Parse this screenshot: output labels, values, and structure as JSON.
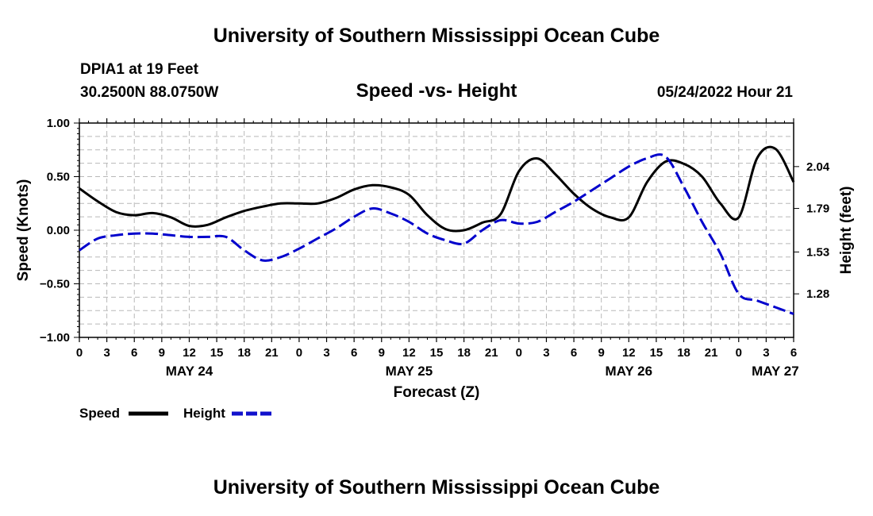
{
  "page": {
    "title": "University of Southern Mississippi Ocean Cube",
    "footer_title": "University of Southern Mississippi Ocean Cube",
    "station": "DPIA1 at 19 Feet",
    "coords": "30.2500N  88.0750W",
    "timestamp": "05/24/2022 Hour 21"
  },
  "chart_data": {
    "type": "line",
    "title": "Speed -vs- Height",
    "xlabel": "Forecast (Z)",
    "ylabel_left": "Speed (Knots)",
    "ylabel_right": "Height (feet)",
    "x_range_hours": [
      0,
      78
    ],
    "ylim_left": [
      -1.0,
      1.0
    ],
    "ylim_right": [
      1.02,
      2.3
    ],
    "grid": true,
    "x_tick_labels": [
      "0",
      "3",
      "6",
      "9",
      "12",
      "15",
      "18",
      "21",
      "0",
      "3",
      "6",
      "9",
      "12",
      "15",
      "18",
      "21",
      "0",
      "3",
      "6",
      "9",
      "12",
      "15",
      "18",
      "21",
      "0",
      "3",
      "6"
    ],
    "day_labels": [
      {
        "label": "MAY 24",
        "hour": 12
      },
      {
        "label": "MAY 25",
        "hour": 36
      },
      {
        "label": "MAY 26",
        "hour": 60
      },
      {
        "label": "MAY 27",
        "hour": 76
      }
    ],
    "left_ticks": [
      "1.00",
      "0.50",
      "0.00",
      "−0.50",
      "−1.00"
    ],
    "left_tick_values": [
      1.0,
      0.5,
      0.0,
      -0.5,
      -1.0
    ],
    "right_ticks": [
      "2.04",
      "1.79",
      "1.53",
      "1.28"
    ],
    "right_tick_values": [
      2.04,
      1.79,
      1.53,
      1.28
    ],
    "series": [
      {
        "name": "Speed",
        "axis": "left",
        "color": "#000000",
        "dash": false,
        "x": [
          0,
          2,
          4,
          6,
          8,
          10,
          12,
          14,
          16,
          18,
          20,
          22,
          24,
          26,
          28,
          30,
          32,
          34,
          36,
          38,
          40,
          42,
          44,
          46,
          48,
          50,
          52,
          54,
          56,
          58,
          60,
          62,
          64,
          66,
          68,
          70,
          72,
          74,
          76,
          78
        ],
        "y": [
          0.39,
          0.27,
          0.17,
          0.14,
          0.16,
          0.12,
          0.04,
          0.05,
          0.12,
          0.18,
          0.22,
          0.25,
          0.25,
          0.25,
          0.3,
          0.38,
          0.42,
          0.4,
          0.33,
          0.14,
          0.01,
          0.0,
          0.07,
          0.15,
          0.55,
          0.67,
          0.52,
          0.34,
          0.2,
          0.12,
          0.12,
          0.45,
          0.64,
          0.62,
          0.5,
          0.25,
          0.12,
          0.67,
          0.76,
          0.45
        ]
      },
      {
        "name": "Height",
        "axis": "right",
        "color": "#0000cc",
        "dash": true,
        "x": [
          0,
          2,
          4,
          6,
          8,
          10,
          12,
          14,
          16,
          18,
          20,
          22,
          24,
          26,
          28,
          30,
          32,
          34,
          36,
          38,
          40,
          42,
          44,
          46,
          48,
          50,
          52,
          54,
          56,
          58,
          60,
          62,
          64,
          66,
          68,
          70,
          72,
          74,
          76,
          78
        ],
        "y": [
          1.54,
          1.61,
          1.63,
          1.64,
          1.64,
          1.63,
          1.62,
          1.62,
          1.62,
          1.54,
          1.48,
          1.5,
          1.55,
          1.61,
          1.67,
          1.74,
          1.79,
          1.76,
          1.71,
          1.64,
          1.6,
          1.58,
          1.66,
          1.72,
          1.7,
          1.71,
          1.77,
          1.83,
          1.9,
          1.97,
          2.04,
          2.09,
          2.1,
          1.92,
          1.71,
          1.52,
          1.28,
          1.24,
          1.2,
          1.16
        ]
      }
    ]
  }
}
